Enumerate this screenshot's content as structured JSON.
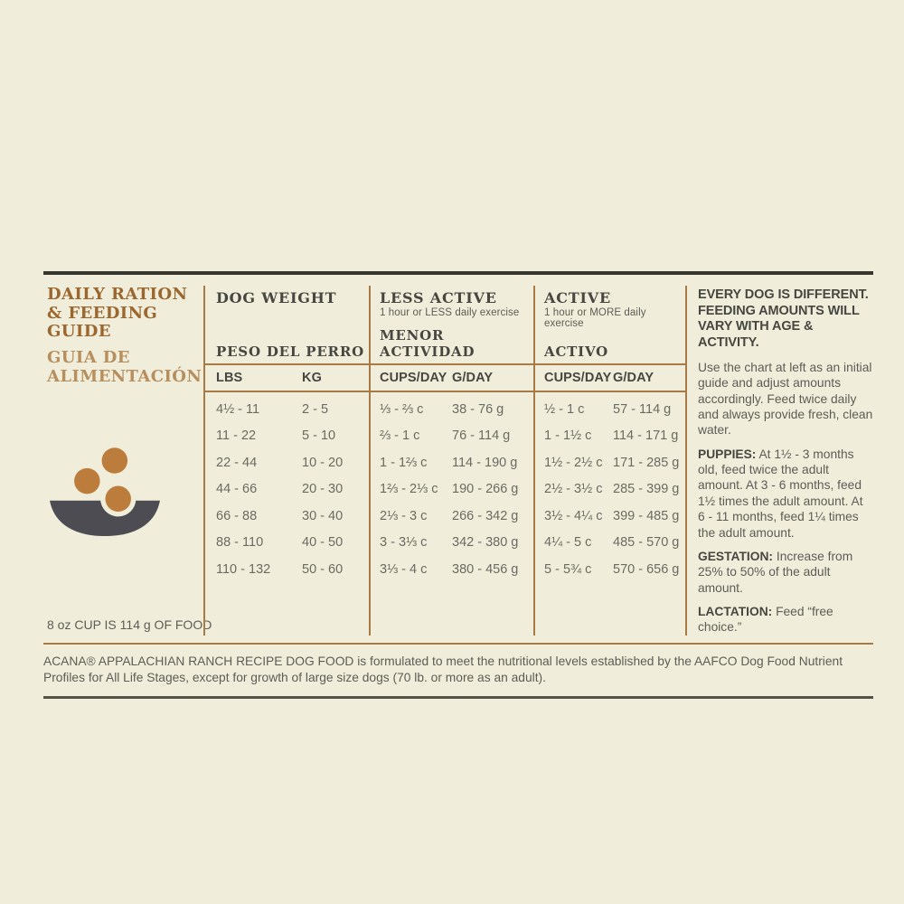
{
  "colors": {
    "background": "#f0eedb",
    "rule_dark": "#37362f",
    "rule_brown": "#a87a45",
    "heading_brown": "#9c672f",
    "heading_tan": "#b78e5e",
    "text_charcoal": "#474640",
    "text_gray": "#6b6a61",
    "kibble_orange": "#bc7d3c",
    "bowl_gray": "#4c4c52"
  },
  "left_panel": {
    "title_en": "DAILY RATION & FEEDING GUIDE",
    "title_es": "GUIA DE ALIMENTACIÓN",
    "bowl_icon": "dog-food-bowl-with-kibble",
    "cup_note": "8 oz CUP IS 114 g OF FOOD"
  },
  "table": {
    "weight": {
      "title_en": "DOG WEIGHT",
      "title_es": "PESO DEL PERRO",
      "col1": "LBS",
      "col2": "KG"
    },
    "less_active": {
      "title_en": "LESS ACTIVE",
      "subtitle": "1 hour or LESS daily exercise",
      "title_es": "MENOR ACTIVIDAD",
      "col1": "CUPS/DAY",
      "col2": "G/DAY"
    },
    "active": {
      "title_en": "ACTIVE",
      "subtitle": "1 hour or MORE daily exercise",
      "title_es": "ACTIVO",
      "col1": "CUPS/DAY",
      "col2": "G/DAY"
    },
    "rows": [
      {
        "lbs": "4½ - 11",
        "kg": "2 - 5",
        "less_cups": "⅓ - ⅔ c",
        "less_g": "38 - 76 g",
        "active_cups": "½ - 1 c",
        "active_g": "57 - 114 g"
      },
      {
        "lbs": "11 - 22",
        "kg": "5 - 10",
        "less_cups": "⅔ - 1 c",
        "less_g": "76 - 114 g",
        "active_cups": "1 - 1½ c",
        "active_g": "114 - 171 g"
      },
      {
        "lbs": "22 - 44",
        "kg": "10 - 20",
        "less_cups": "1 - 1⅔ c",
        "less_g": "114 - 190 g",
        "active_cups": "1½ - 2½ c",
        "active_g": "171 - 285 g"
      },
      {
        "lbs": "44 - 66",
        "kg": "20 - 30",
        "less_cups": "1⅔ - 2⅓ c",
        "less_g": "190 - 266 g",
        "active_cups": "2½ - 3½ c",
        "active_g": "285 - 399 g"
      },
      {
        "lbs": "66 - 88",
        "kg": "30 - 40",
        "less_cups": "2⅓ - 3 c",
        "less_g": "266 - 342 g",
        "active_cups": "3½ - 4¼ c",
        "active_g": "399 - 485 g"
      },
      {
        "lbs": "88 - 110",
        "kg": "40 - 50",
        "less_cups": "3 - 3⅓ c",
        "less_g": "342 - 380 g",
        "active_cups": "4¼ - 5 c",
        "active_g": "485 - 570 g"
      },
      {
        "lbs": "110 - 132",
        "kg": "50 - 60",
        "less_cups": "3⅓ - 4 c",
        "less_g": "380 - 456 g",
        "active_cups": "5 - 5¾ c",
        "active_g": "570 - 656 g"
      }
    ]
  },
  "notes_panel": {
    "heading": "EVERY DOG IS DIFFERENT. FEEDING AMOUNTS WILL VARY WITH AGE & ACTIVITY.",
    "intro": "Use the chart at left as an initial guide and adjust amounts accordingly. Feed twice daily and always provide fresh, clean water.",
    "sections": [
      {
        "label": "PUPPIES:",
        "text": " At 1½ - 3 months old, feed twice the adult amount. At 3 - 6 months, feed 1½ times the adult amount. At 6 - 11 months, feed 1¼ times the adult amount."
      },
      {
        "label": "GESTATION:",
        "text": " Increase from 25% to 50% of the adult amount."
      },
      {
        "label": "LACTATION:",
        "text": " Feed “free choice.”"
      }
    ]
  },
  "footer": {
    "text": "ACANA® APPALACHIAN RANCH RECIPE DOG FOOD is formulated to meet the nutritional levels established by the AAFCO Dog Food Nutrient Profiles for All Life Stages, except for growth of large size dogs (70 lb. or more as an adult)."
  }
}
